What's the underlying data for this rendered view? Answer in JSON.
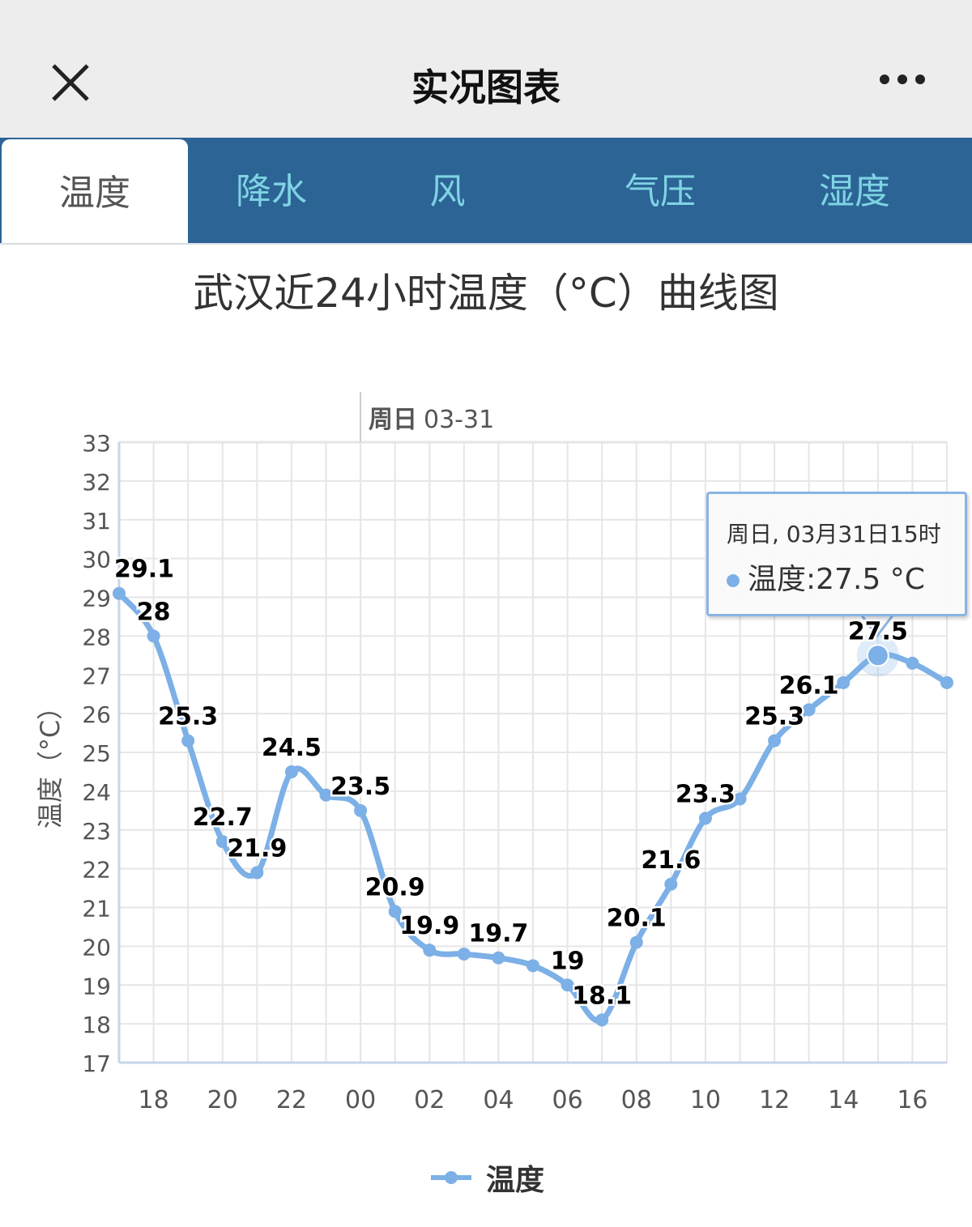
{
  "header": {
    "title": "实况图表",
    "close_icon": "close-icon",
    "more_icon": "more-icon"
  },
  "tabs": [
    {
      "label": "温度",
      "active": true
    },
    {
      "label": "降水"
    },
    {
      "label": "风"
    },
    {
      "label": "气压"
    },
    {
      "label": "湿度"
    }
  ],
  "chart_data": {
    "type": "line",
    "title": "武汉近24小时温度（°C）曲线图",
    "ylabel": "温度（°C）",
    "xlabel": "",
    "day_marker": {
      "bold": "周日",
      "date": "03-31",
      "at_hour": "00"
    },
    "ylim": [
      17,
      33
    ],
    "yticks": [
      17,
      18,
      19,
      20,
      21,
      22,
      23,
      24,
      25,
      26,
      27,
      28,
      29,
      30,
      31,
      32,
      33
    ],
    "x": [
      "17",
      "18",
      "19",
      "20",
      "21",
      "22",
      "23",
      "00",
      "01",
      "02",
      "03",
      "04",
      "05",
      "06",
      "07",
      "08",
      "09",
      "10",
      "11",
      "12",
      "13",
      "14",
      "15",
      "16",
      "17"
    ],
    "xtick_labels": [
      "18",
      "20",
      "22",
      "00",
      "02",
      "04",
      "06",
      "08",
      "10",
      "12",
      "14",
      "16"
    ],
    "series": [
      {
        "name": "温度",
        "color": "#7cb0e6",
        "values": [
          29.1,
          28,
          25.3,
          22.7,
          21.9,
          24.5,
          23.9,
          23.5,
          20.9,
          19.9,
          19.8,
          19.7,
          19.5,
          19,
          18.1,
          20.1,
          21.6,
          23.3,
          23.8,
          25.3,
          26.1,
          26.8,
          27.5,
          27.3,
          26.8
        ],
        "labels": [
          "29.1",
          "28",
          "25.3",
          "22.7",
          "21.9",
          "24.5",
          null,
          "23.5",
          "20.9",
          "19.9",
          null,
          "19.7",
          null,
          "19",
          "18.1",
          "20.1",
          "21.6",
          "23.3",
          null,
          "25.3",
          "26.1",
          null,
          "27.5",
          null,
          null
        ]
      }
    ],
    "legend": {
      "position": "bottom-center",
      "label": "温度"
    },
    "grid": true,
    "tooltip": {
      "line1": "周日, 03月31日15时",
      "line2": "温度:27.5 °C",
      "highlight_index": 22
    }
  }
}
